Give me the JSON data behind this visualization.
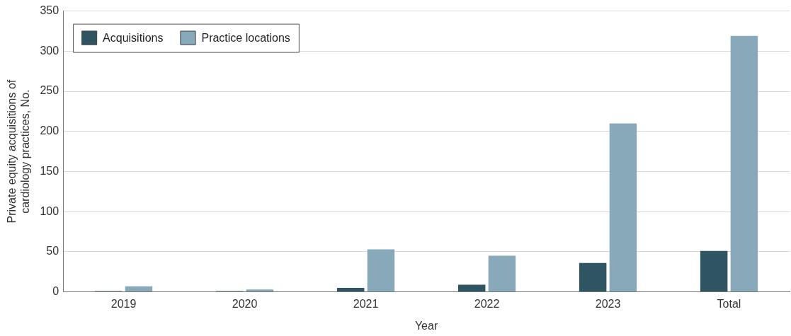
{
  "chart_data": {
    "type": "bar",
    "xlabel": "Year",
    "ylabel": "Private equity acquisitions of\ncardiology practices, No.",
    "categories": [
      "2019",
      "2020",
      "2021",
      "2022",
      "2023",
      "Total"
    ],
    "series": [
      {
        "name": "Acquisitions",
        "color": "#2f5562",
        "values": [
          1,
          1,
          5,
          9,
          36,
          51
        ]
      },
      {
        "name": "Practice locations",
        "color": "#87a9b9",
        "values": [
          7,
          3,
          53,
          45,
          210,
          319
        ]
      }
    ],
    "ylim": [
      0,
      350
    ],
    "yticks": [
      0,
      50,
      100,
      150,
      200,
      250,
      300,
      350
    ],
    "grid": "y",
    "legend": "top left"
  }
}
